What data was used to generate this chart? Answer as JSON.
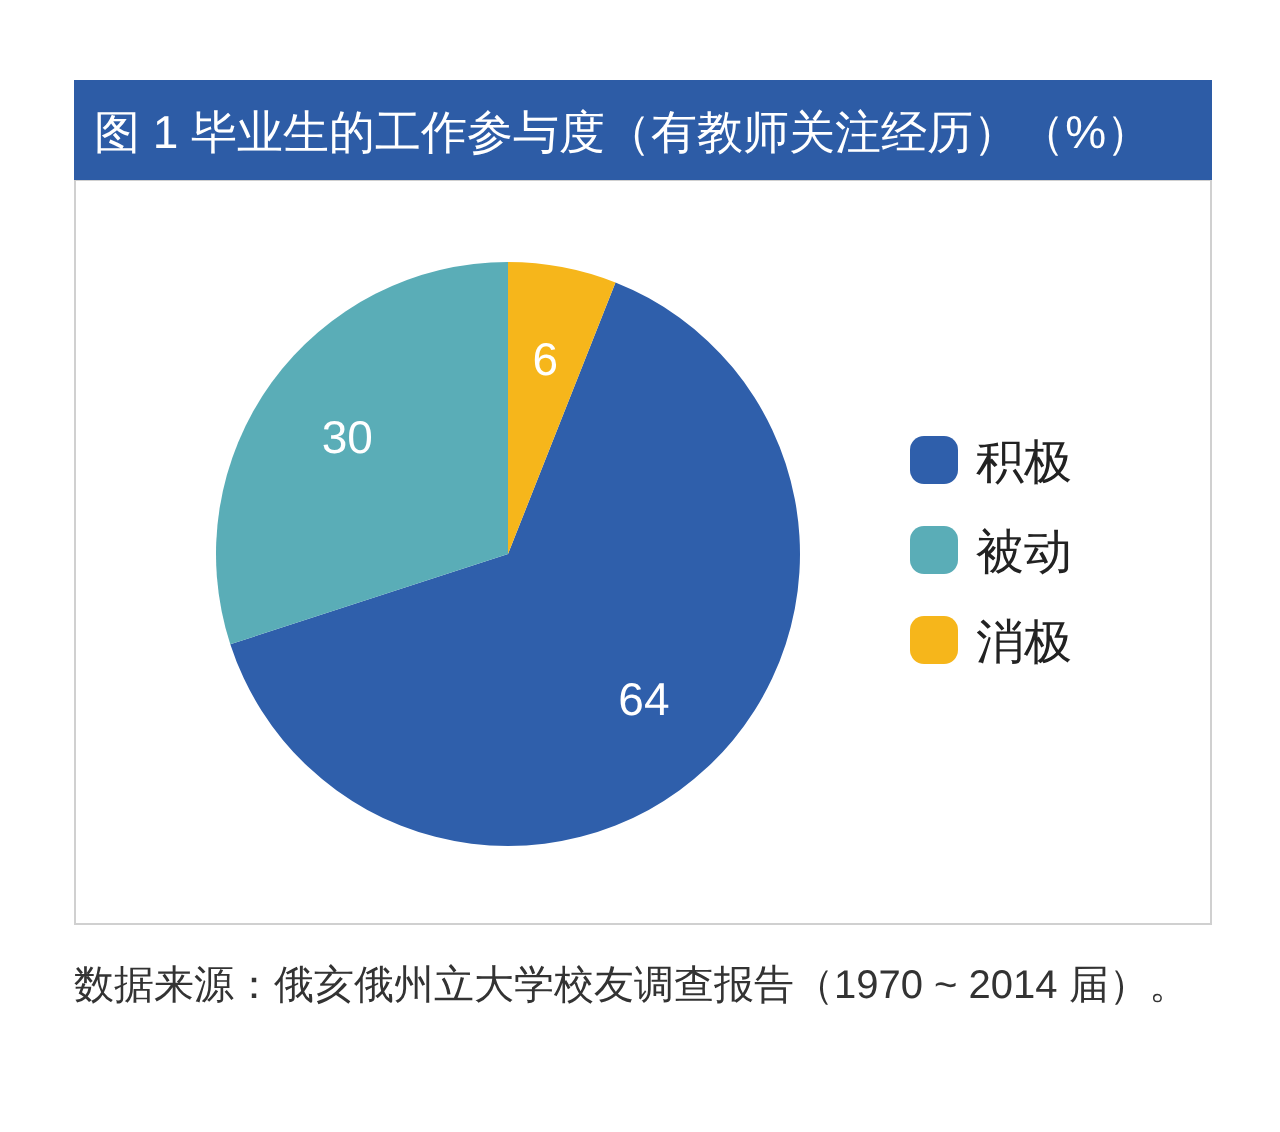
{
  "chart_data": {
    "type": "pie",
    "title": "图 1 毕业生的工作参与度（有教师关注经历）（%）",
    "categories": [
      "积极",
      "被动",
      "消极"
    ],
    "values": [
      64,
      30,
      6
    ],
    "colors": [
      "#2f5fab",
      "#5aadb7",
      "#f6b61b"
    ],
    "data_labels": true,
    "legend": "right",
    "annotations": [
      "数据来源：俄亥俄州立大学校友调查报告（1970 ~ 2014 届）。"
    ]
  }
}
